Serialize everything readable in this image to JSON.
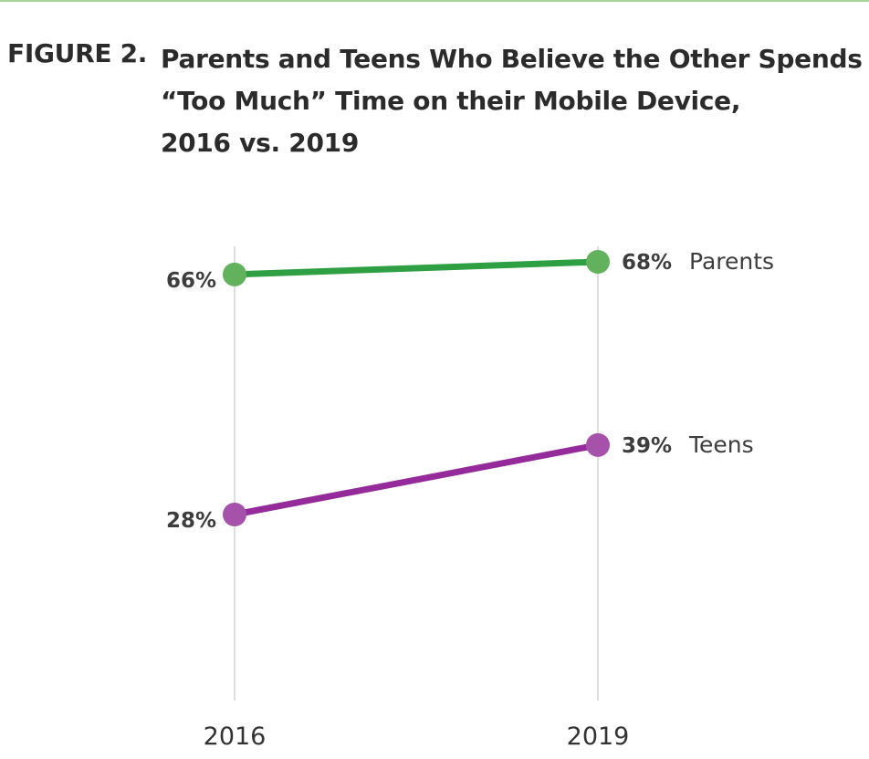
{
  "figure": {
    "label": "FIGURE 2.",
    "title_lines": [
      "Parents and Teens Who Believe the Other Spends",
      "“Too Much” Time on their Mobile Device,",
      "2016 vs. 2019"
    ]
  },
  "chart_data": {
    "type": "line",
    "title": "Parents and Teens Who Believe the Other Spends “Too Much” Time on their Mobile Device, 2016 vs. 2019",
    "x": [
      "2016",
      "2019"
    ],
    "series": [
      {
        "name": "Parents",
        "values": [
          66,
          68
        ],
        "labels": [
          "66%",
          "68%"
        ],
        "color": "#2ea043"
      },
      {
        "name": "Teens",
        "values": [
          28,
          39
        ],
        "labels": [
          "28%",
          "39%"
        ],
        "color": "#952a9a"
      }
    ],
    "marker_colors": {
      "Parents": "#62b25d",
      "Teens": "#a752aa"
    },
    "gridline_color": "#c8c8c8",
    "value_label_color": "#3d3d3d",
    "legend_placement": "inline-right",
    "grid": "vertical-only"
  }
}
